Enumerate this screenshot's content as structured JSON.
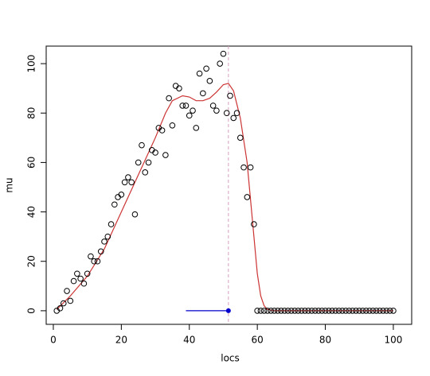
{
  "chart_data": {
    "type": "scatter",
    "xlabel": "locs",
    "ylabel": "mu",
    "x": [
      1,
      2,
      3,
      4,
      5,
      6,
      7,
      8,
      9,
      10,
      11,
      12,
      13,
      14,
      15,
      16,
      17,
      18,
      19,
      20,
      21,
      22,
      23,
      24,
      25,
      26,
      27,
      28,
      29,
      30,
      31,
      32,
      33,
      34,
      35,
      36,
      37,
      38,
      39,
      40,
      41,
      42,
      43,
      44,
      45,
      46,
      47,
      48,
      49,
      50,
      51,
      52,
      53,
      54,
      55,
      56,
      57,
      58,
      59,
      60,
      61,
      62,
      63,
      64,
      65,
      66,
      67,
      68,
      69,
      70,
      71,
      72,
      73,
      74,
      75,
      76,
      77,
      78,
      79,
      80,
      81,
      82,
      83,
      84,
      85,
      86,
      87,
      88,
      89,
      90,
      91,
      92,
      93,
      94,
      95,
      96,
      97,
      98,
      99,
      100
    ],
    "values": [
      0,
      1,
      3,
      8,
      4,
      12,
      15,
      13,
      11,
      15,
      22,
      20,
      20,
      24,
      28,
      30,
      35,
      43,
      46,
      47,
      52,
      54,
      52,
      39,
      60,
      67,
      56,
      60,
      65,
      64,
      74,
      73,
      63,
      86,
      75,
      91,
      90,
      83,
      83,
      79,
      81,
      74,
      96,
      88,
      98,
      93,
      83,
      81,
      100,
      104,
      80,
      87,
      78,
      80,
      70,
      58,
      46,
      58,
      35,
      0,
      0,
      0,
      0,
      0,
      0,
      0,
      0,
      0,
      0,
      0,
      0,
      0,
      0,
      0,
      0,
      0,
      0,
      0,
      0,
      0,
      0,
      0,
      0,
      0,
      0,
      0,
      0,
      0,
      0,
      0,
      0,
      0,
      0,
      0,
      0,
      0,
      0,
      0,
      0,
      0
    ],
    "point_color": "#000000",
    "curve": {
      "color": "#cc3333",
      "x": [
        1,
        5,
        10,
        15,
        20,
        25,
        30,
        33,
        35,
        38,
        40,
        42,
        44,
        46,
        48,
        50,
        51.5,
        53,
        55,
        57,
        58,
        59,
        60,
        61,
        62,
        63,
        65,
        100
      ],
      "y": [
        0.5,
        6,
        14,
        25,
        40,
        55,
        70,
        80,
        85,
        87,
        86.5,
        85,
        85,
        86,
        88.5,
        91.5,
        92,
        89,
        78,
        60,
        45,
        30,
        15,
        6,
        2,
        0.5,
        0,
        0
      ]
    },
    "vline": {
      "x": 51.5,
      "color": "#d9a0c0"
    },
    "segment": {
      "x": [
        39,
        51.5
      ],
      "y": 0,
      "color": "#0000cc"
    },
    "xlim": [
      -2.1,
      105.4
    ],
    "ylim": [
      -5.5,
      107.1
    ],
    "xticks": [
      0,
      20,
      40,
      60,
      80,
      100
    ],
    "yticks": [
      0,
      20,
      40,
      60,
      80,
      100
    ]
  }
}
